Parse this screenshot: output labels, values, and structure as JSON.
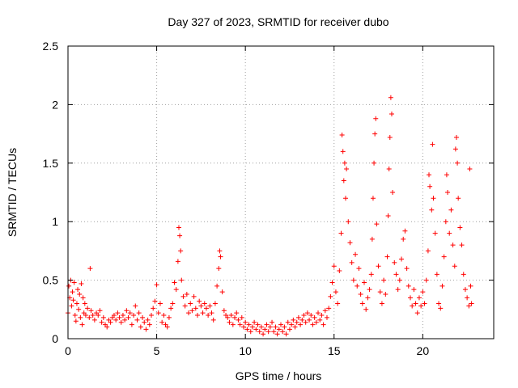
{
  "chart_data": {
    "type": "scatter",
    "title": "Day 327 of 2023, SRMTID for receiver dubo",
    "xlabel": "GPS time / hours",
    "ylabel": "SRMTID / TECUs",
    "xlim": [
      0,
      24
    ],
    "ylim": [
      0,
      2.5
    ],
    "xticks": [
      0,
      5,
      10,
      15,
      20
    ],
    "yticks": [
      0,
      0.5,
      1,
      1.5,
      2,
      2.5
    ],
    "xtick_labels": [
      "0",
      "5",
      "10",
      "15",
      "20"
    ],
    "ytick_labels": [
      "0",
      "0.5",
      "1",
      "1.5",
      "2",
      "2.5"
    ],
    "grid": true,
    "marker": "+",
    "series": [
      {
        "name": "SRMTID",
        "color": "#ff0000",
        "points": [
          [
            0.0,
            0.22
          ],
          [
            0.05,
            0.45
          ],
          [
            0.1,
            0.35
          ],
          [
            0.15,
            0.5
          ],
          [
            0.2,
            0.28
          ],
          [
            0.25,
            0.4
          ],
          [
            0.3,
            0.33
          ],
          [
            0.35,
            0.48
          ],
          [
            0.4,
            0.2
          ],
          [
            0.45,
            0.15
          ],
          [
            0.5,
            0.3
          ],
          [
            0.55,
            0.42
          ],
          [
            0.6,
            0.25
          ],
          [
            0.65,
            0.38
          ],
          [
            0.7,
            0.18
          ],
          [
            0.75,
            0.47
          ],
          [
            0.8,
            0.12
          ],
          [
            0.85,
            0.35
          ],
          [
            0.9,
            0.22
          ],
          [
            0.95,
            0.3
          ],
          [
            1.0,
            0.2
          ],
          [
            1.1,
            0.26
          ],
          [
            1.2,
            0.18
          ],
          [
            1.25,
            0.6
          ],
          [
            1.3,
            0.24
          ],
          [
            1.4,
            0.2
          ],
          [
            1.5,
            0.16
          ],
          [
            1.6,
            0.22
          ],
          [
            1.7,
            0.2
          ],
          [
            1.8,
            0.24
          ],
          [
            1.9,
            0.14
          ],
          [
            2.0,
            0.18
          ],
          [
            2.1,
            0.12
          ],
          [
            2.2,
            0.1
          ],
          [
            2.3,
            0.16
          ],
          [
            2.4,
            0.14
          ],
          [
            2.5,
            0.18
          ],
          [
            2.6,
            0.2
          ],
          [
            2.7,
            0.16
          ],
          [
            2.8,
            0.22
          ],
          [
            2.9,
            0.18
          ],
          [
            3.0,
            0.14
          ],
          [
            3.1,
            0.2
          ],
          [
            3.2,
            0.16
          ],
          [
            3.3,
            0.24
          ],
          [
            3.4,
            0.18
          ],
          [
            3.5,
            0.22
          ],
          [
            3.6,
            0.12
          ],
          [
            3.7,
            0.2
          ],
          [
            3.8,
            0.28
          ],
          [
            3.9,
            0.16
          ],
          [
            4.0,
            0.22
          ],
          [
            4.1,
            0.1
          ],
          [
            4.2,
            0.18
          ],
          [
            4.3,
            0.14
          ],
          [
            4.4,
            0.08
          ],
          [
            4.5,
            0.16
          ],
          [
            4.6,
            0.12
          ],
          [
            4.7,
            0.2
          ],
          [
            4.8,
            0.26
          ],
          [
            4.9,
            0.32
          ],
          [
            5.0,
            0.46
          ],
          [
            5.1,
            0.22
          ],
          [
            5.2,
            0.3
          ],
          [
            5.3,
            0.14
          ],
          [
            5.4,
            0.2
          ],
          [
            5.5,
            0.12
          ],
          [
            5.6,
            0.1
          ],
          [
            5.7,
            0.18
          ],
          [
            5.8,
            0.26
          ],
          [
            5.9,
            0.3
          ],
          [
            6.0,
            0.48
          ],
          [
            6.1,
            0.42
          ],
          [
            6.2,
            0.66
          ],
          [
            6.25,
            0.95
          ],
          [
            6.3,
            0.88
          ],
          [
            6.35,
            0.75
          ],
          [
            6.4,
            0.5
          ],
          [
            6.5,
            0.36
          ],
          [
            6.6,
            0.28
          ],
          [
            6.7,
            0.38
          ],
          [
            6.8,
            0.22
          ],
          [
            6.9,
            0.3
          ],
          [
            7.0,
            0.24
          ],
          [
            7.1,
            0.36
          ],
          [
            7.2,
            0.26
          ],
          [
            7.3,
            0.2
          ],
          [
            7.4,
            0.32
          ],
          [
            7.5,
            0.28
          ],
          [
            7.6,
            0.22
          ],
          [
            7.7,
            0.3
          ],
          [
            7.8,
            0.26
          ],
          [
            7.9,
            0.2
          ],
          [
            8.0,
            0.28
          ],
          [
            8.1,
            0.22
          ],
          [
            8.2,
            0.16
          ],
          [
            8.3,
            0.3
          ],
          [
            8.4,
            0.45
          ],
          [
            8.5,
            0.6
          ],
          [
            8.55,
            0.75
          ],
          [
            8.6,
            0.7
          ],
          [
            8.7,
            0.4
          ],
          [
            8.8,
            0.24
          ],
          [
            8.9,
            0.2
          ],
          [
            9.0,
            0.18
          ],
          [
            9.1,
            0.14
          ],
          [
            9.2,
            0.2
          ],
          [
            9.3,
            0.12
          ],
          [
            9.4,
            0.18
          ],
          [
            9.5,
            0.22
          ],
          [
            9.6,
            0.16
          ],
          [
            9.7,
            0.12
          ],
          [
            9.8,
            0.18
          ],
          [
            9.9,
            0.1
          ],
          [
            10.0,
            0.14
          ],
          [
            10.1,
            0.08
          ],
          [
            10.2,
            0.12
          ],
          [
            10.3,
            0.06
          ],
          [
            10.4,
            0.1
          ],
          [
            10.5,
            0.14
          ],
          [
            10.6,
            0.08
          ],
          [
            10.7,
            0.12
          ],
          [
            10.8,
            0.06
          ],
          [
            10.9,
            0.1
          ],
          [
            11.0,
            0.04
          ],
          [
            11.1,
            0.08
          ],
          [
            11.2,
            0.12
          ],
          [
            11.3,
            0.06
          ],
          [
            11.4,
            0.1
          ],
          [
            11.5,
            0.14
          ],
          [
            11.6,
            0.06
          ],
          [
            11.7,
            0.1
          ],
          [
            11.8,
            0.04
          ],
          [
            11.9,
            0.08
          ],
          [
            12.0,
            0.12
          ],
          [
            12.1,
            0.06
          ],
          [
            12.2,
            0.1
          ],
          [
            12.3,
            0.04
          ],
          [
            12.4,
            0.14
          ],
          [
            12.5,
            0.08
          ],
          [
            12.6,
            0.12
          ],
          [
            12.7,
            0.16
          ],
          [
            12.8,
            0.1
          ],
          [
            12.9,
            0.14
          ],
          [
            13.0,
            0.18
          ],
          [
            13.1,
            0.12
          ],
          [
            13.2,
            0.16
          ],
          [
            13.3,
            0.2
          ],
          [
            13.4,
            0.14
          ],
          [
            13.5,
            0.22
          ],
          [
            13.6,
            0.16
          ],
          [
            13.7,
            0.2
          ],
          [
            13.8,
            0.12
          ],
          [
            13.9,
            0.18
          ],
          [
            14.0,
            0.14
          ],
          [
            14.1,
            0.22
          ],
          [
            14.2,
            0.16
          ],
          [
            14.3,
            0.2
          ],
          [
            14.4,
            0.12
          ],
          [
            14.5,
            0.24
          ],
          [
            14.6,
            0.18
          ],
          [
            14.7,
            0.26
          ],
          [
            14.8,
            0.36
          ],
          [
            14.9,
            0.48
          ],
          [
            15.0,
            0.62
          ],
          [
            15.1,
            0.4
          ],
          [
            15.2,
            0.3
          ],
          [
            15.3,
            0.58
          ],
          [
            15.4,
            0.9
          ],
          [
            15.45,
            1.74
          ],
          [
            15.5,
            1.6
          ],
          [
            15.55,
            1.35
          ],
          [
            15.6,
            1.5
          ],
          [
            15.65,
            1.2
          ],
          [
            15.7,
            1.45
          ],
          [
            15.8,
            1.0
          ],
          [
            15.9,
            0.82
          ],
          [
            16.0,
            0.65
          ],
          [
            16.1,
            0.5
          ],
          [
            16.2,
            0.72
          ],
          [
            16.3,
            0.45
          ],
          [
            16.4,
            0.6
          ],
          [
            16.5,
            0.38
          ],
          [
            16.6,
            0.3
          ],
          [
            16.7,
            0.48
          ],
          [
            16.8,
            0.25
          ],
          [
            16.9,
            0.35
          ],
          [
            17.0,
            0.42
          ],
          [
            17.1,
            0.55
          ],
          [
            17.15,
            0.85
          ],
          [
            17.2,
            1.2
          ],
          [
            17.25,
            1.5
          ],
          [
            17.3,
            1.75
          ],
          [
            17.35,
            1.88
          ],
          [
            17.4,
            0.98
          ],
          [
            17.5,
            0.62
          ],
          [
            17.6,
            0.4
          ],
          [
            17.7,
            0.3
          ],
          [
            17.8,
            0.5
          ],
          [
            17.9,
            0.38
          ],
          [
            18.0,
            0.7
          ],
          [
            18.05,
            1.05
          ],
          [
            18.1,
            1.45
          ],
          [
            18.15,
            1.72
          ],
          [
            18.2,
            2.06
          ],
          [
            18.25,
            1.92
          ],
          [
            18.3,
            1.25
          ],
          [
            18.4,
            0.65
          ],
          [
            18.5,
            0.55
          ],
          [
            18.6,
            0.42
          ],
          [
            18.7,
            0.5
          ],
          [
            18.8,
            0.68
          ],
          [
            18.9,
            0.85
          ],
          [
            19.0,
            0.92
          ],
          [
            19.1,
            0.6
          ],
          [
            19.2,
            0.45
          ],
          [
            19.3,
            0.35
          ],
          [
            19.4,
            0.28
          ],
          [
            19.5,
            0.42
          ],
          [
            19.6,
            0.3
          ],
          [
            19.7,
            0.22
          ],
          [
            19.8,
            0.35
          ],
          [
            19.9,
            0.28
          ],
          [
            20.0,
            0.4
          ],
          [
            20.1,
            0.3
          ],
          [
            20.2,
            0.5
          ],
          [
            20.3,
            0.75
          ],
          [
            20.35,
            1.4
          ],
          [
            20.4,
            1.3
          ],
          [
            20.5,
            1.1
          ],
          [
            20.55,
            1.66
          ],
          [
            20.6,
            1.2
          ],
          [
            20.7,
            0.9
          ],
          [
            20.8,
            0.55
          ],
          [
            20.9,
            0.3
          ],
          [
            21.0,
            0.26
          ],
          [
            21.1,
            0.45
          ],
          [
            21.2,
            0.7
          ],
          [
            21.3,
            1.0
          ],
          [
            21.35,
            1.4
          ],
          [
            21.4,
            1.25
          ],
          [
            21.5,
            0.9
          ],
          [
            21.6,
            1.1
          ],
          [
            21.7,
            0.8
          ],
          [
            21.8,
            0.62
          ],
          [
            21.85,
            1.62
          ],
          [
            21.9,
            1.72
          ],
          [
            21.95,
            1.5
          ],
          [
            22.0,
            1.2
          ],
          [
            22.1,
            0.95
          ],
          [
            22.2,
            0.8
          ],
          [
            22.3,
            0.55
          ],
          [
            22.4,
            0.42
          ],
          [
            22.5,
            0.35
          ],
          [
            22.6,
            0.28
          ],
          [
            22.65,
            1.45
          ],
          [
            22.7,
            0.45
          ],
          [
            22.75,
            0.3
          ]
        ]
      }
    ]
  }
}
